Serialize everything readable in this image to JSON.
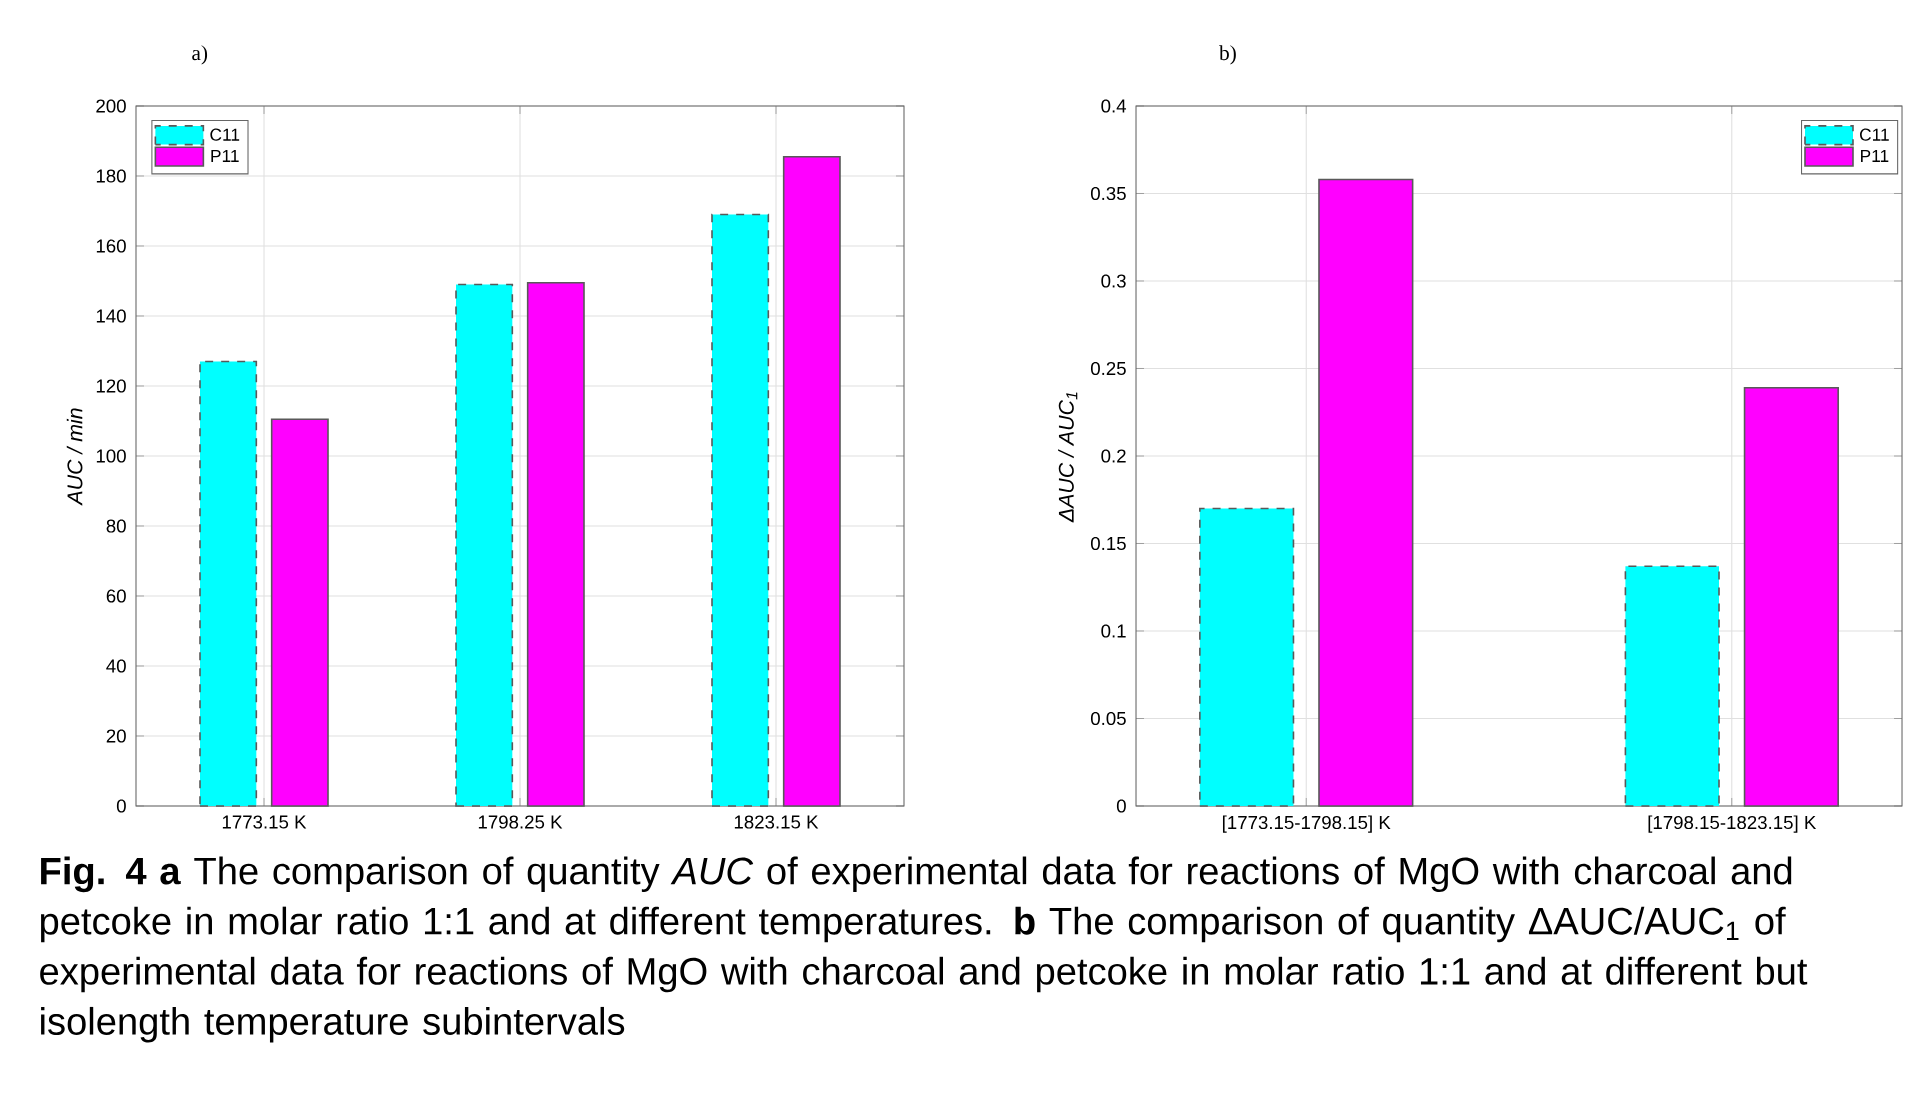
{
  "chart_data": [
    {
      "type": "bar",
      "title": "a)",
      "ylabel": "AUC / min",
      "categories": [
        "1773.15 K",
        "1798.25 K",
        "1823.15 K"
      ],
      "series": [
        {
          "name": "C11",
          "color": "#00ffff",
          "line_style": "dashed",
          "values": [
            127,
            149,
            169
          ]
        },
        {
          "name": "P11",
          "color": "#ff00ff",
          "values": [
            110.5,
            149.5,
            185.5
          ]
        }
      ],
      "ylim": [
        0,
        200
      ],
      "yticks": [
        0,
        20,
        40,
        60,
        80,
        100,
        120,
        140,
        160,
        180,
        200
      ],
      "grid": true,
      "legend": "top left",
      "annotations": [
        "**Fig. 4 a** The comparison of quantity *AUC* of experimental data for reactions of MgO with charcoal and petcoke in molar ratio 1:1 and at different temperatures. **b** The comparison of quantity ΔAUC/AUC$_{1}$ of experimental data for reactions of MgO with charcoal and petcoke in molar ratio 1:1 and at different but isolength temperature subintervals"
      ]
    },
    {
      "type": "bar",
      "title": "b)",
      "ylabel": "ΔAUC / AUC$_{1}$",
      "categories": [
        "[1773.15-1798.15] K",
        "[1798.15-1823.15] K"
      ],
      "series": [
        {
          "name": "C11",
          "color": "#00ffff",
          "line_style": "dashed",
          "values": [
            0.17,
            0.137
          ]
        },
        {
          "name": "P11",
          "color": "#ff00ff",
          "values": [
            0.358,
            0.239
          ]
        }
      ],
      "ylim": [
        0,
        0.4
      ],
      "yticks": [
        0,
        0.05,
        0.1,
        0.15,
        0.2,
        0.25,
        0.3,
        0.35,
        0.4
      ],
      "grid": true,
      "legend": "top right"
    }
  ]
}
